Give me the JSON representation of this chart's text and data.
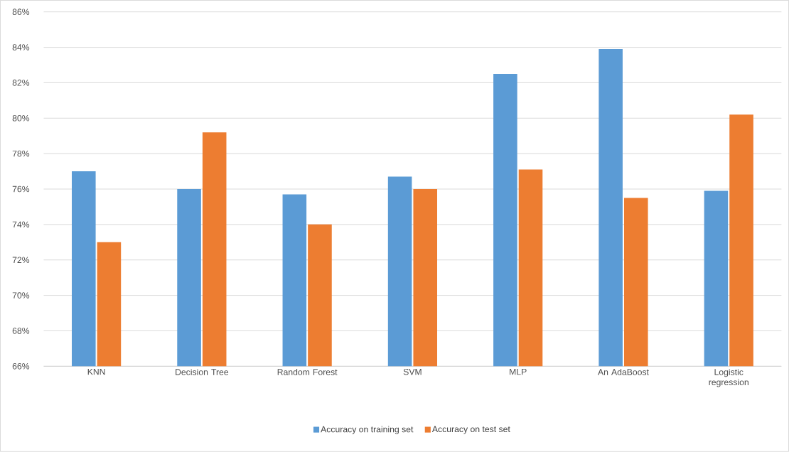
{
  "chart_data": {
    "type": "bar",
    "categories": [
      "KNN",
      "Decision Tree",
      "Random Forest",
      "SVM",
      "MLP",
      "An AdaBoost",
      "Logistic regression"
    ],
    "series": [
      {
        "name": "Accuracy on training set",
        "color": "#5b9bd5",
        "values": [
          77.0,
          76.0,
          75.7,
          76.7,
          82.5,
          83.9,
          75.9
        ]
      },
      {
        "name": "Accuracy on test set",
        "color": "#ed7d31",
        "values": [
          73.0,
          79.2,
          74.0,
          76.0,
          77.1,
          75.5,
          80.2
        ]
      }
    ],
    "ylim": [
      66,
      86
    ],
    "yticks": [
      {
        "value": 66,
        "label": "66%"
      },
      {
        "value": 68,
        "label": "68%"
      },
      {
        "value": 70,
        "label": "70%"
      },
      {
        "value": 72,
        "label": "72%"
      },
      {
        "value": 74,
        "label": "74%"
      },
      {
        "value": 76,
        "label": "76%"
      },
      {
        "value": 78,
        "label": "78%"
      },
      {
        "value": 80,
        "label": "80%"
      },
      {
        "value": 82,
        "label": "82%"
      },
      {
        "value": 84,
        "label": "84%"
      },
      {
        "value": 86,
        "label": "86%"
      }
    ],
    "grid": "y",
    "legend": "bottom"
  }
}
